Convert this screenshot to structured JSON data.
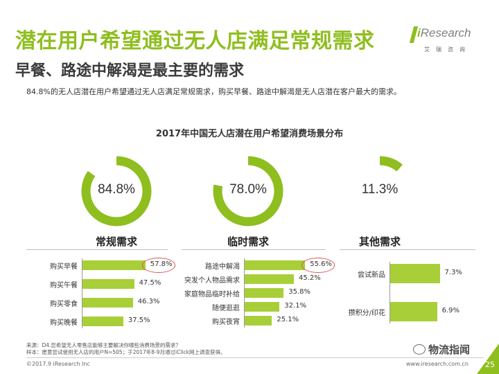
{
  "slide": {
    "title": "潜在用户希望通过无人店满足常规需求",
    "subtitle": "早餐、路途中解渴是最主要的需求",
    "summary": "84.8%的无人店潜在用户希望通过无人店满足常规需求，购买早餐、路途中解渴是无人店潜在客户最大的需求。",
    "logo_main": "Research",
    "logo_i": "i",
    "logo_sub": "艾瑞咨询",
    "source_line1": "来源：D4.您希望无人零售店能够主要解决你哪些消费场景的需求？",
    "source_line2": "样本：愿意尝试使用无人店的用户N=505；于2017年8-9月通过iClick网上调查获得。",
    "copyright": "©2017.9 iResearch Inc",
    "website": "www.iresearch.com.cn",
    "watermark": "物流指闻",
    "page_number": "25",
    "accent_color": "#8fbe1f",
    "bar_color": "#a8cf38",
    "highlight_color": "#d9534f"
  },
  "chart_data": {
    "type": "bar",
    "title": "2017年中国无人店潜在用户希望消费场景分布",
    "rings": [
      {
        "name": "常规需求",
        "value": 84.8,
        "label": "84.8%"
      },
      {
        "name": "临时需求",
        "value": 78.0,
        "label": "78.0%"
      },
      {
        "name": "其他需求",
        "value": 11.3,
        "label": "11.3%"
      }
    ],
    "groups": [
      {
        "name": "常规需求",
        "categories": [
          "购买早餐",
          "购买午餐",
          "购买零食",
          "购买晚餐"
        ],
        "values": [
          57.8,
          47.5,
          46.3,
          37.5
        ],
        "labels": [
          "57.8%",
          "47.5%",
          "46.3%",
          "37.5%"
        ]
      },
      {
        "name": "临时需求",
        "categories": [
          "路途中解渴",
          "突发个人物品需求",
          "家庭物品临时补给",
          "随便逛逛",
          "购买夜宵"
        ],
        "values": [
          55.6,
          45.2,
          35.8,
          32.1,
          25.1
        ],
        "labels": [
          "55.6%",
          "45.2%",
          "35.8%",
          "32.1%",
          "25.1%"
        ]
      },
      {
        "name": "其他需求",
        "categories": [
          "尝试新品",
          "攒积分/印花"
        ],
        "values": [
          7.3,
          6.9
        ],
        "labels": [
          "7.3%",
          "6.9%"
        ]
      }
    ]
  }
}
